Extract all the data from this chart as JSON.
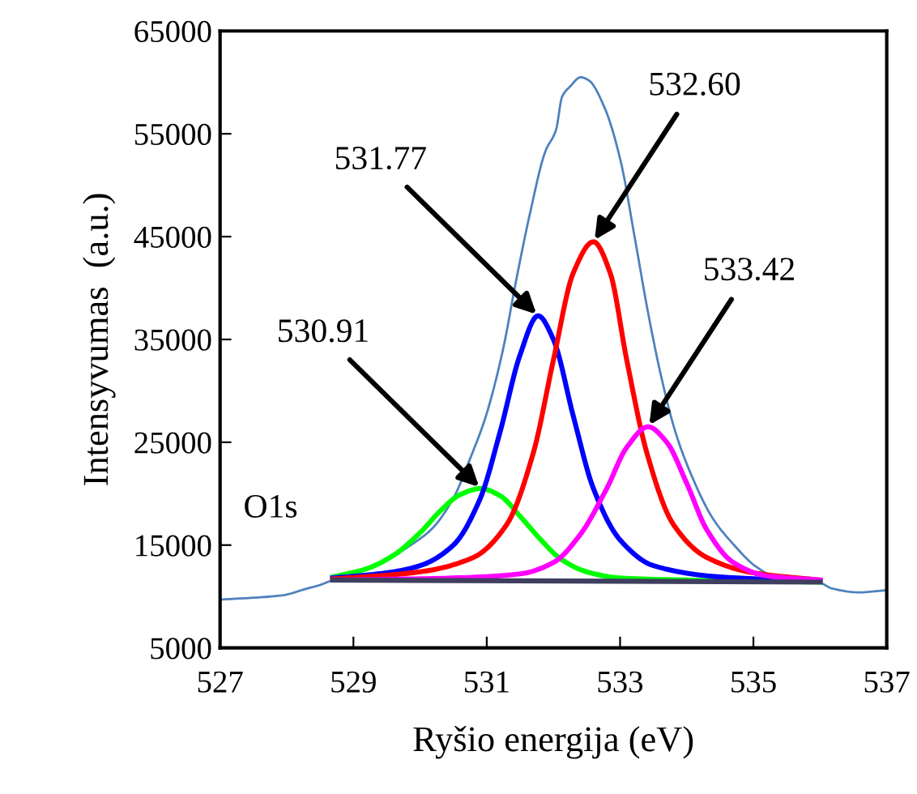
{
  "chart_data": {
    "type": "line",
    "xlabel": "Ryšio energija (eV)",
    "ylabel": "Intensyvumas  (a.u.)",
    "xlim": [
      527,
      537
    ],
    "xticks": [
      527,
      529,
      531,
      533,
      535,
      537
    ],
    "ylim": [
      5000,
      65000
    ],
    "yticks": [
      5000,
      15000,
      25000,
      35000,
      45000,
      55000,
      65000
    ],
    "grid": false,
    "marker": "none",
    "line_style": "solid",
    "series": [
      {
        "color": "#4f81bd",
        "x": [
          527.01,
          527.92,
          528.32,
          528.49,
          528.69,
          529.05,
          529.46,
          529.86,
          530.18,
          530.51,
          530.75,
          530.99,
          531.24,
          531.44,
          531.64,
          531.88,
          532.04,
          532.13,
          532.25,
          532.41,
          532.53,
          532.77,
          533.01,
          533.22,
          533.42,
          533.62,
          533.83,
          534.07,
          534.39,
          534.71,
          535.04,
          535.36,
          536.01,
          536.17,
          536.58,
          536.98
        ],
        "values": [
          9700,
          10100,
          10800,
          11100,
          11600,
          12300,
          13400,
          15000,
          16600,
          19700,
          23400,
          27600,
          33900,
          40700,
          47000,
          53300,
          55400,
          58600,
          59600,
          60500,
          60200,
          57500,
          52300,
          44900,
          37600,
          31300,
          26000,
          21800,
          17600,
          15000,
          12900,
          11800,
          11300,
          10800,
          10400,
          10600
        ]
      },
      {
        "color": "#00ff00",
        "x": [
          528.69,
          529.2,
          529.6,
          530.0,
          530.3,
          530.6,
          530.91,
          531.2,
          531.5,
          531.8,
          532.1,
          532.5,
          533.0,
          534.0,
          536.0
        ],
        "values": [
          11900,
          12700,
          14000,
          16200,
          18300,
          19900,
          20500,
          19800,
          17800,
          15600,
          13700,
          12400,
          11800,
          11600,
          11400
        ]
      },
      {
        "color": "#0000ff",
        "x": [
          528.69,
          529.5,
          530.0,
          530.5,
          530.9,
          531.2,
          531.5,
          531.77,
          532.0,
          532.3,
          532.6,
          533.0,
          533.5,
          534.5,
          536.0
        ],
        "values": [
          11800,
          12300,
          13000,
          15000,
          19500,
          26000,
          33500,
          37300,
          35000,
          27500,
          20500,
          15500,
          13000,
          11900,
          11500
        ]
      },
      {
        "color": "#ff0000",
        "x": [
          528.69,
          530.0,
          530.8,
          531.3,
          531.7,
          532.0,
          532.3,
          532.6,
          532.85,
          533.1,
          533.4,
          533.8,
          534.3,
          535.0,
          536.0
        ],
        "values": [
          11700,
          12400,
          13800,
          17000,
          24000,
          33000,
          41500,
          44500,
          41500,
          33000,
          24000,
          17000,
          13800,
          12300,
          11600
        ]
      },
      {
        "color": "#ff00ff",
        "x": [
          528.69,
          530.5,
          531.5,
          532.0,
          532.4,
          532.8,
          533.1,
          533.42,
          533.7,
          534.0,
          534.3,
          534.7,
          535.2,
          536.0
        ],
        "values": [
          11600,
          11800,
          12200,
          13300,
          16000,
          20500,
          24500,
          26500,
          25000,
          21000,
          16500,
          13300,
          12000,
          11600
        ]
      },
      {
        "color": "#3f3f5f",
        "x": [
          528.69,
          536.0
        ],
        "values": [
          11600,
          11400
        ]
      }
    ],
    "annotations": [
      {
        "text": "530.91",
        "x": 530.91,
        "y": 20500
      },
      {
        "text": "531.77",
        "x": 531.77,
        "y": 37300
      },
      {
        "text": "532.60",
        "x": 532.6,
        "y": 44500
      },
      {
        "text": "533.42",
        "x": 533.42,
        "y": 26500
      },
      "O1s"
    ]
  }
}
